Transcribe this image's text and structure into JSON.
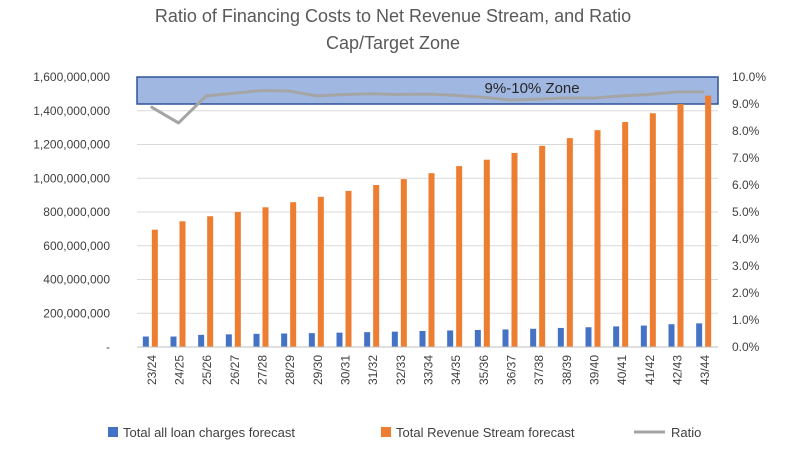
{
  "chart_data": {
    "type": "bar+line",
    "title_line1": "Ratio of Financing Costs to Net Revenue Stream, and Ratio",
    "title_line2": "Cap/Target Zone",
    "categories": [
      "23/24",
      "24/25",
      "25/26",
      "26/27",
      "27/28",
      "28/29",
      "29/30",
      "30/31",
      "31/32",
      "32/33",
      "33/34",
      "34/35",
      "35/36",
      "36/37",
      "37/38",
      "38/39",
      "39/40",
      "40/41",
      "41/42",
      "42/43",
      "43/44"
    ],
    "series": [
      {
        "name": "Total all loan charges forecast",
        "type": "bar",
        "axis": "left",
        "color": "#4472C4",
        "values": [
          62000000,
          62000000,
          72000000,
          75000000,
          78000000,
          80000000,
          82000000,
          85000000,
          88000000,
          91000000,
          95000000,
          98000000,
          101000000,
          104000000,
          108000000,
          113000000,
          117000000,
          122000000,
          127000000,
          135000000,
          140000000
        ]
      },
      {
        "name": "Total Revenue Stream forecast",
        "type": "bar",
        "axis": "left",
        "color": "#ED7D31",
        "values": [
          695000000,
          745000000,
          775000000,
          800000000,
          828000000,
          858000000,
          890000000,
          925000000,
          960000000,
          995000000,
          1030000000,
          1072000000,
          1110000000,
          1150000000,
          1192000000,
          1238000000,
          1285000000,
          1333000000,
          1385000000,
          1440000000,
          1490000000
        ]
      },
      {
        "name": "Ratio",
        "type": "line",
        "axis": "right",
        "color": "#A5A5A5",
        "values": [
          0.089,
          0.083,
          0.093,
          0.094,
          0.095,
          0.0948,
          0.093,
          0.0935,
          0.0938,
          0.0935,
          0.0937,
          0.0932,
          0.0925,
          0.0915,
          0.0918,
          0.0922,
          0.0922,
          0.093,
          0.0935,
          0.0945,
          0.0945
        ]
      }
    ],
    "y_left": {
      "min": 0,
      "max": 1600000000,
      "ticks": [
        "-",
        "200,000,000",
        "400,000,000",
        "600,000,000",
        "800,000,000",
        "1,000,000,000",
        "1,200,000,000",
        "1,400,000,000",
        "1,600,000,000"
      ]
    },
    "y_right": {
      "min": 0,
      "max": 0.1,
      "ticks": [
        "0.0%",
        "1.0%",
        "2.0%",
        "3.0%",
        "4.0%",
        "5.0%",
        "6.0%",
        "7.0%",
        "8.0%",
        "9.0%",
        "10.0%"
      ]
    },
    "zone": {
      "label": "9%-10% Zone",
      "from": 0.09,
      "to": 0.1,
      "fill": "#8FAADC",
      "stroke": "#2F5597"
    },
    "grid": true,
    "legend_position": "bottom"
  }
}
